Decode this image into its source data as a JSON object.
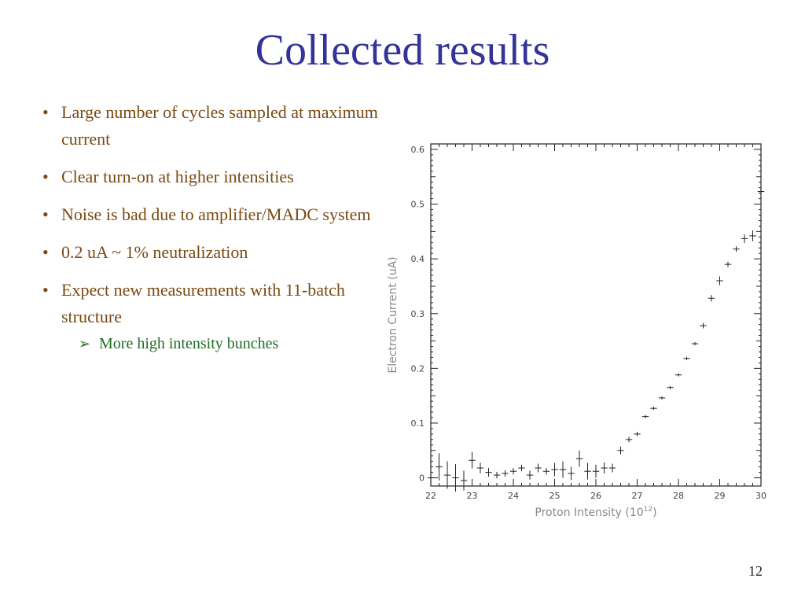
{
  "slide": {
    "title": "Collected results",
    "bullets": [
      {
        "text": "Large number of cycles sampled at maximum current"
      },
      {
        "text": "Clear turn-on at  higher intensities"
      },
      {
        "text": "Noise is bad due to amplifier/MADC system"
      },
      {
        "text": "0.2 uA ~ 1% neutralization"
      },
      {
        "text": "Expect new measurements with 11-batch structure",
        "sub_bullets": [
          "More high intensity bunches"
        ]
      }
    ],
    "bullet_glyph": "•",
    "sub_bullet_glyph": "➢",
    "page_number": "12",
    "colors": {
      "title": "#33339a",
      "bullet_text": "#7a4a12",
      "sub_bullet_text": "#1f6f22"
    }
  },
  "chart_data": {
    "type": "scatter",
    "title": "",
    "xlabel": "Proton Intensity (10",
    "xlabel_superscript": "12",
    "xlabel_suffix": ")",
    "ylabel": "Electron Current (uA)",
    "xlim": [
      22,
      30
    ],
    "ylim": [
      -0.015,
      0.61
    ],
    "x_ticks": [
      "22",
      "23",
      "24",
      "25",
      "26",
      "27",
      "28",
      "29",
      "30"
    ],
    "y_ticks": [
      "0",
      "0.1",
      "0.2",
      "0.3",
      "0.4",
      "0.5",
      "0.6"
    ],
    "grid": false,
    "legend": "none",
    "series": [
      {
        "marker": "cross-with-error-bars",
        "points": [
          {
            "x": 22.0,
            "y": 0.0,
            "xerr": 0.08,
            "yerr": 0.015
          },
          {
            "x": 22.2,
            "y": 0.02,
            "xerr": 0.08,
            "yerr": 0.025
          },
          {
            "x": 22.4,
            "y": 0.005,
            "xerr": 0.08,
            "yerr": 0.025
          },
          {
            "x": 22.6,
            "y": 0.0,
            "xerr": 0.08,
            "yerr": 0.025
          },
          {
            "x": 22.8,
            "y": -0.005,
            "xerr": 0.08,
            "yerr": 0.018
          },
          {
            "x": 23.0,
            "y": 0.032,
            "xerr": 0.08,
            "yerr": 0.015
          },
          {
            "x": 23.2,
            "y": 0.018,
            "xerr": 0.08,
            "yerr": 0.01
          },
          {
            "x": 23.4,
            "y": 0.01,
            "xerr": 0.08,
            "yerr": 0.008
          },
          {
            "x": 23.6,
            "y": 0.005,
            "xerr": 0.08,
            "yerr": 0.006
          },
          {
            "x": 23.8,
            "y": 0.008,
            "xerr": 0.08,
            "yerr": 0.006
          },
          {
            "x": 24.0,
            "y": 0.012,
            "xerr": 0.08,
            "yerr": 0.006
          },
          {
            "x": 24.2,
            "y": 0.018,
            "xerr": 0.08,
            "yerr": 0.006
          },
          {
            "x": 24.4,
            "y": 0.005,
            "xerr": 0.08,
            "yerr": 0.008
          },
          {
            "x": 24.6,
            "y": 0.018,
            "xerr": 0.08,
            "yerr": 0.008
          },
          {
            "x": 24.8,
            "y": 0.012,
            "xerr": 0.08,
            "yerr": 0.006
          },
          {
            "x": 25.0,
            "y": 0.015,
            "xerr": 0.08,
            "yerr": 0.012
          },
          {
            "x": 25.2,
            "y": 0.015,
            "xerr": 0.08,
            "yerr": 0.015
          },
          {
            "x": 25.4,
            "y": 0.008,
            "xerr": 0.08,
            "yerr": 0.012
          },
          {
            "x": 25.6,
            "y": 0.035,
            "xerr": 0.08,
            "yerr": 0.015
          },
          {
            "x": 25.8,
            "y": 0.012,
            "xerr": 0.08,
            "yerr": 0.015
          },
          {
            "x": 26.0,
            "y": 0.012,
            "xerr": 0.08,
            "yerr": 0.012
          },
          {
            "x": 26.2,
            "y": 0.018,
            "xerr": 0.08,
            "yerr": 0.01
          },
          {
            "x": 26.4,
            "y": 0.018,
            "xerr": 0.08,
            "yerr": 0.008
          },
          {
            "x": 26.6,
            "y": 0.05,
            "xerr": 0.08,
            "yerr": 0.007
          },
          {
            "x": 26.8,
            "y": 0.07,
            "xerr": 0.08,
            "yerr": 0.005
          },
          {
            "x": 27.0,
            "y": 0.08,
            "xerr": 0.08,
            "yerr": 0.004
          },
          {
            "x": 27.2,
            "y": 0.112,
            "xerr": 0.08,
            "yerr": 0.003
          },
          {
            "x": 27.4,
            "y": 0.127,
            "xerr": 0.08,
            "yerr": 0.003
          },
          {
            "x": 27.6,
            "y": 0.146,
            "xerr": 0.08,
            "yerr": 0.003
          },
          {
            "x": 27.8,
            "y": 0.165,
            "xerr": 0.08,
            "yerr": 0.003
          },
          {
            "x": 28.0,
            "y": 0.188,
            "xerr": 0.08,
            "yerr": 0.003
          },
          {
            "x": 28.2,
            "y": 0.218,
            "xerr": 0.08,
            "yerr": 0.003
          },
          {
            "x": 28.4,
            "y": 0.245,
            "xerr": 0.08,
            "yerr": 0.003
          },
          {
            "x": 28.6,
            "y": 0.278,
            "xerr": 0.08,
            "yerr": 0.005
          },
          {
            "x": 28.8,
            "y": 0.328,
            "xerr": 0.08,
            "yerr": 0.006
          },
          {
            "x": 29.0,
            "y": 0.36,
            "xerr": 0.08,
            "yerr": 0.008
          },
          {
            "x": 29.2,
            "y": 0.39,
            "xerr": 0.08,
            "yerr": 0.005
          },
          {
            "x": 29.4,
            "y": 0.418,
            "xerr": 0.08,
            "yerr": 0.005
          },
          {
            "x": 29.6,
            "y": 0.437,
            "xerr": 0.08,
            "yerr": 0.008
          },
          {
            "x": 29.8,
            "y": 0.442,
            "xerr": 0.08,
            "yerr": 0.01
          },
          {
            "x": 30.0,
            "y": 0.523,
            "xerr": 0.08,
            "yerr": 0.03
          }
        ]
      }
    ]
  }
}
